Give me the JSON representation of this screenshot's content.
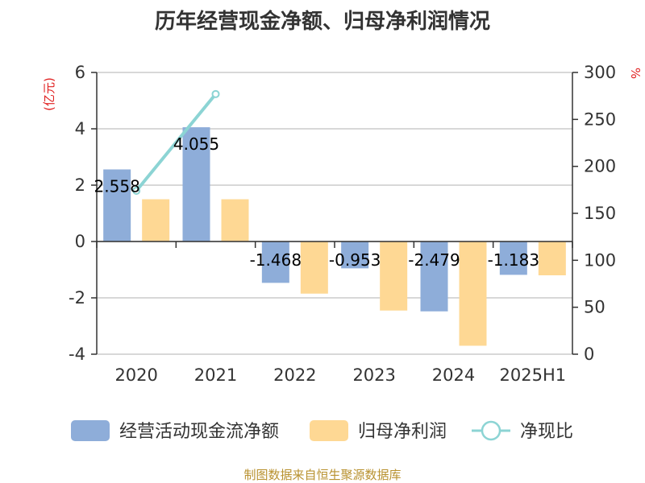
{
  "chart_data": {
    "type": "bar",
    "title": "历年经营现金净额、归母净利润情况",
    "categories": [
      "2020",
      "2021",
      "2022",
      "2023",
      "2024",
      "2025H1"
    ],
    "series": [
      {
        "name": "经营活动现金流净额",
        "kind": "bar",
        "axis": "left",
        "color": "#8eadd9",
        "values": [
          2.558,
          4.055,
          -1.468,
          -0.953,
          -2.479,
          -1.183
        ],
        "labels": [
          "2.558",
          "4.055",
          "-1.468",
          "-0.953",
          "-2.479",
          "-1.183"
        ]
      },
      {
        "name": "归母净利润",
        "kind": "bar",
        "axis": "left",
        "color": "#fed894",
        "values": [
          1.5,
          1.5,
          -1.85,
          -2.45,
          -3.7,
          -1.2
        ]
      },
      {
        "name": "净现比",
        "kind": "line",
        "axis": "right",
        "color": "#8cd4d4",
        "values": [
          174,
          277,
          null,
          null,
          null,
          null
        ]
      }
    ],
    "y_left": {
      "unit": "(亿元)",
      "min": -4,
      "max": 6,
      "ticks": [
        "6",
        "4",
        "2",
        "0",
        "-2",
        "-4"
      ]
    },
    "y_right": {
      "unit": "%",
      "min": 0,
      "max": 300,
      "ticks": [
        "300",
        "250",
        "200",
        "150",
        "100",
        "50",
        "0"
      ]
    },
    "grid": true,
    "legend_position": "bottom",
    "source": "制图数据来自恒生聚源数据库"
  }
}
